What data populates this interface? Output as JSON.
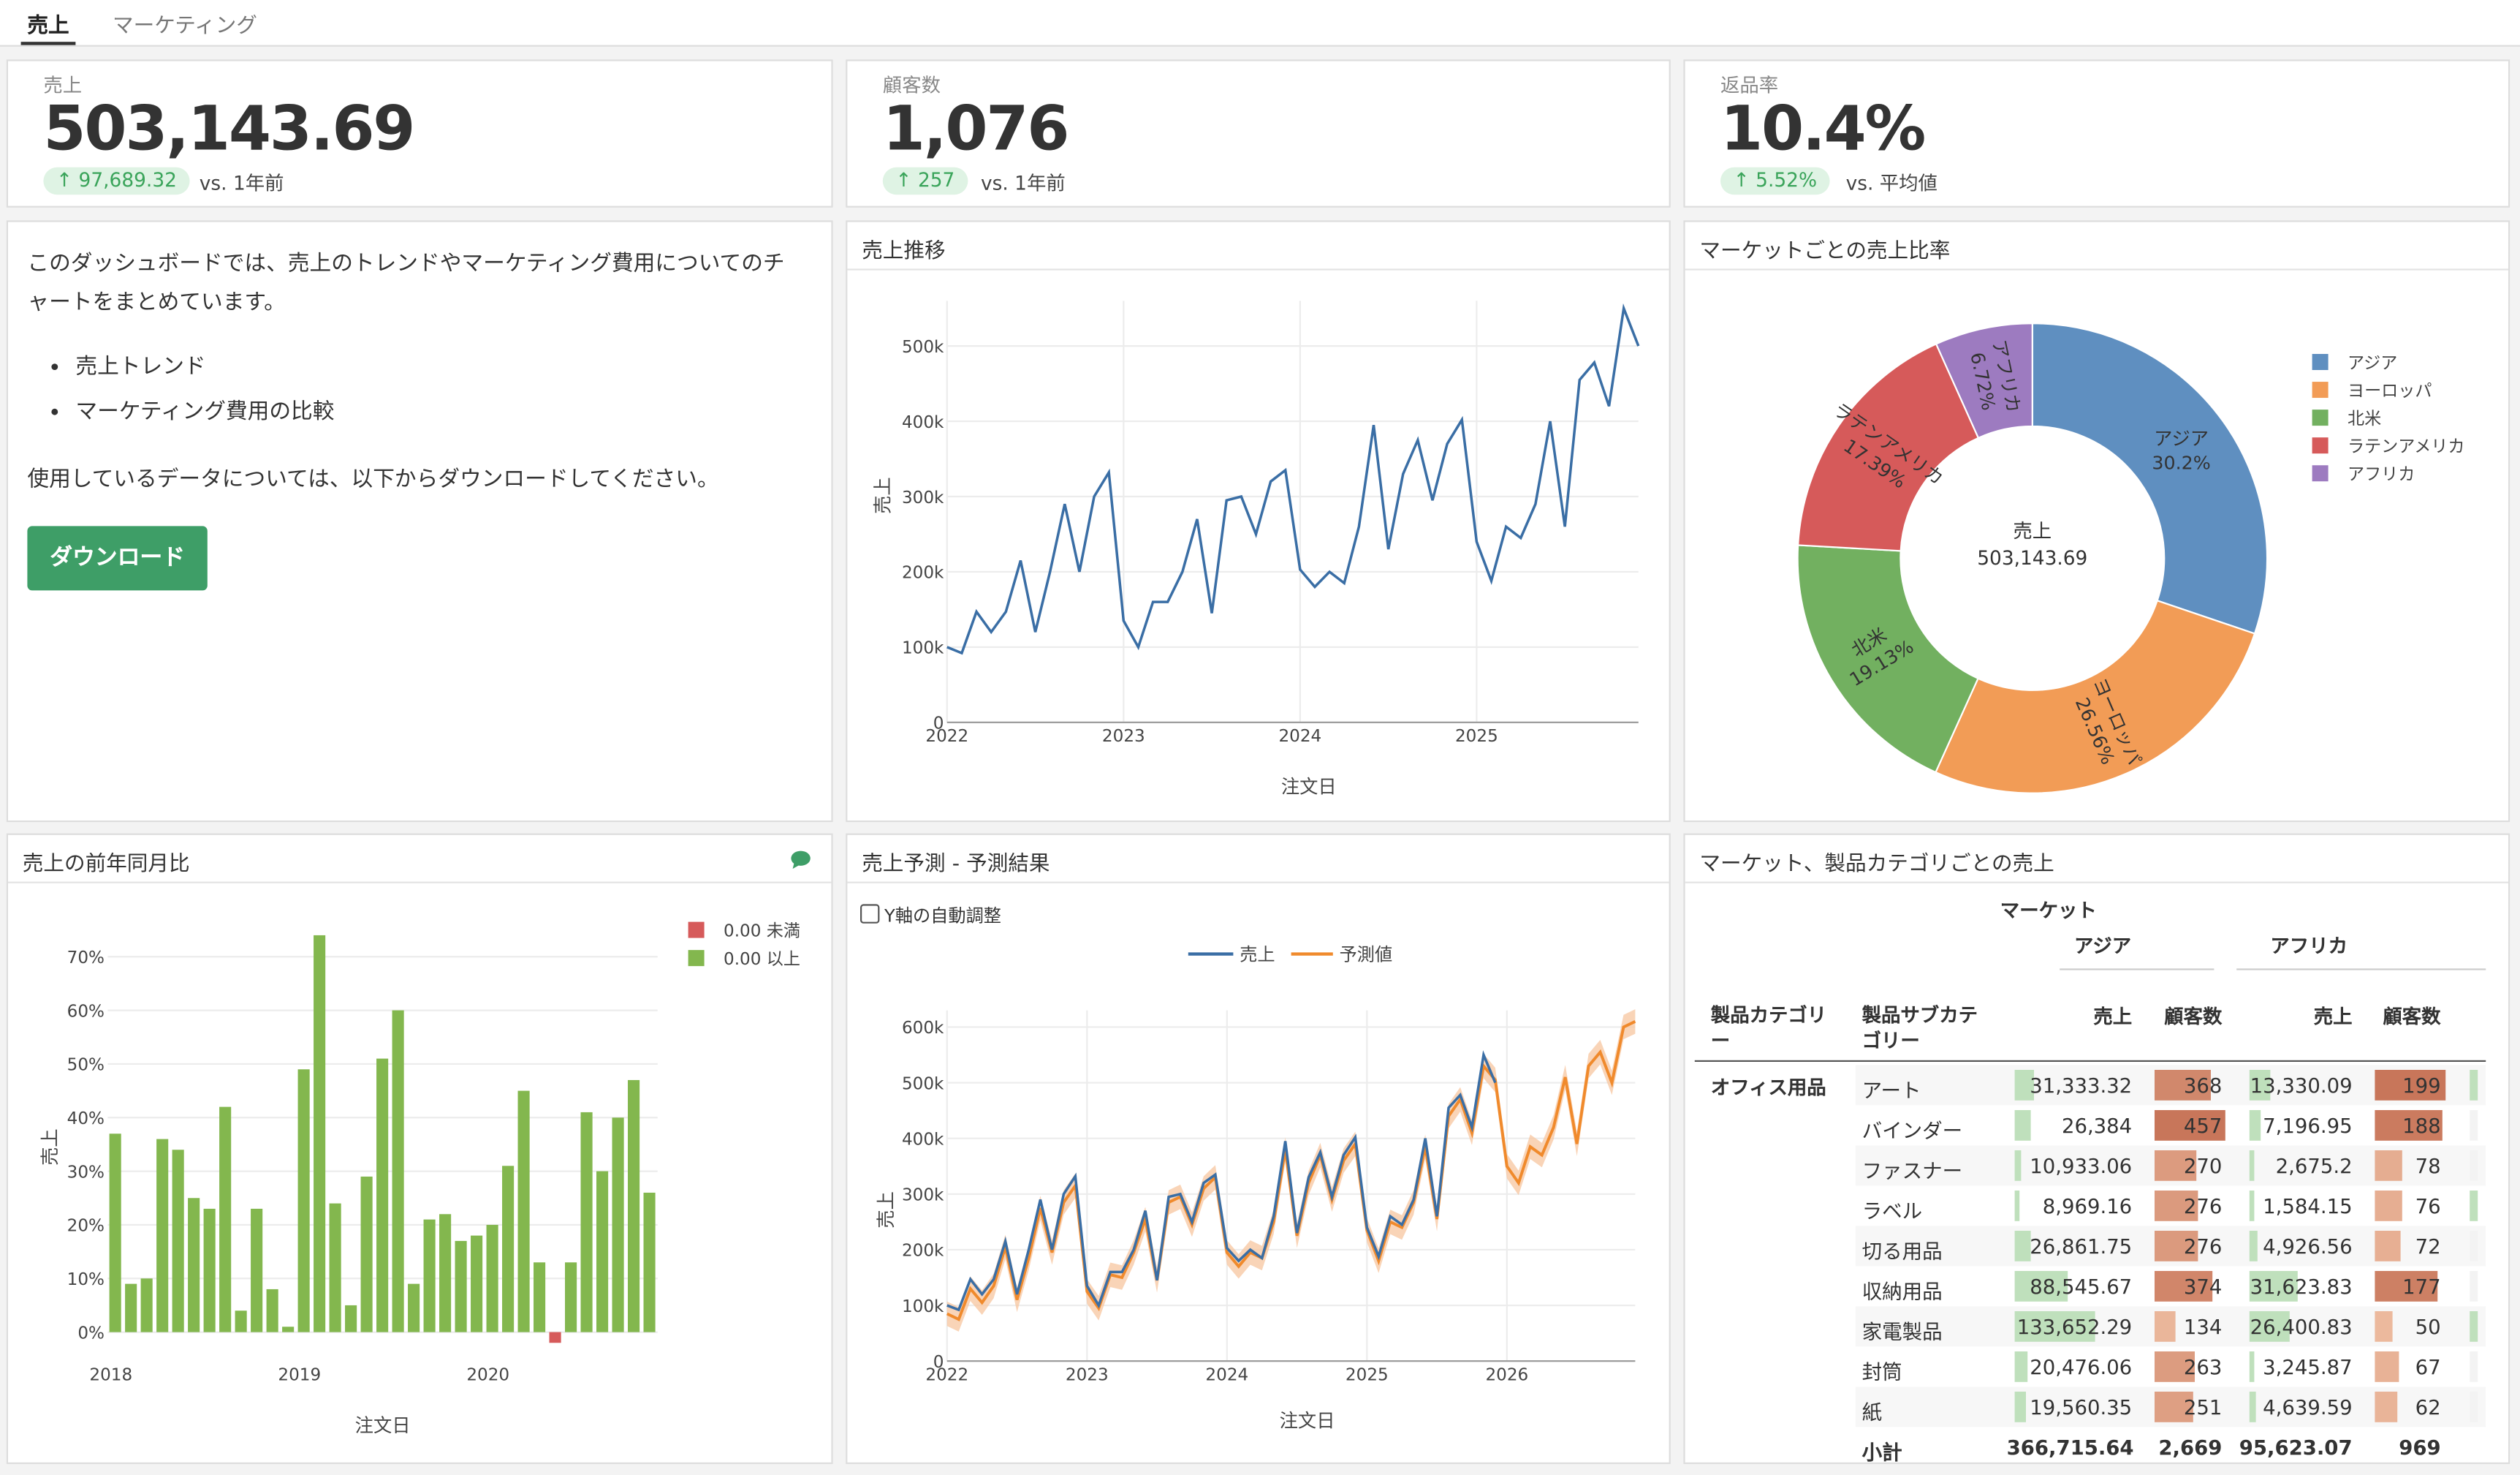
{
  "tabs": [
    {
      "label": "売上"
    },
    {
      "label": "マーケティング"
    }
  ],
  "kpis": [
    {
      "label": "売上",
      "value": "503,143.69",
      "delta": "97,689.32",
      "vs": "vs. 1年前"
    },
    {
      "label": "顧客数",
      "value": "1,076",
      "delta": "257",
      "vs": "vs. 1年前"
    },
    {
      "label": "返品率",
      "value": "10.4%",
      "delta": "5.52%",
      "vs": "vs. 平均値"
    }
  ],
  "intro": {
    "line1": "このダッシュボードでは、売上のトレンドやマーケティング費用についてのチ",
    "line2": "ャートをまとめています。",
    "bullets": [
      "売上トレンド",
      "マーケティング費用の比較"
    ],
    "note": "使用しているデータについては、以下からダウンロードしてください。",
    "button": "ダウンロード"
  },
  "panels": {
    "trend": "売上推移",
    "market_share": "マーケットごとの売上比率",
    "yoy": "売上の前年同月比",
    "forecast": "売上予測 - 予測結果",
    "table": "マーケット、製品カテゴリごとの売上"
  },
  "icons": {
    "comment": "comment-icon",
    "up_arrow": "arrow-up-icon"
  },
  "colors": {
    "accent": "#3e9e67",
    "line": "#3a6ea5",
    "forecast": "#f08a2c",
    "positive": "#83b74e",
    "negative": "#d65a5a"
  },
  "chart_data": [
    {
      "id": "trend",
      "type": "line",
      "xlabel": "注文日",
      "ylabel": "売上",
      "x_ticks": [
        "2022",
        "2023",
        "2024",
        "2025"
      ],
      "y_ticks": [
        "0",
        "100k",
        "200k",
        "300k",
        "400k",
        "500k"
      ],
      "ylim": [
        0,
        560000
      ],
      "x_start": "2022-01",
      "x_unit": "month",
      "series": [
        {
          "values": [
            100000,
            92000,
            147000,
            120000,
            147000,
            215000,
            120000,
            200000,
            290000,
            200000,
            300000,
            332000,
            135000,
            100000,
            160000,
            160000,
            200000,
            270000,
            145000,
            295000,
            300000,
            250000,
            320000,
            335000,
            203000,
            180000,
            200000,
            185000,
            260000,
            395000,
            230000,
            330000,
            375000,
            295000,
            370000,
            402000,
            240000,
            188000,
            260000,
            245000,
            290000,
            400000,
            260000,
            455000,
            478000,
            420000,
            550000,
            500000
          ]
        }
      ]
    },
    {
      "id": "market_share",
      "type": "pie",
      "center_label": "売上",
      "center_value": "503,143.69",
      "labels": [
        "アジア",
        "ヨーロッパ",
        "北米",
        "ラテンアメリカ",
        "アフリカ"
      ],
      "values": [
        30.2,
        26.56,
        19.13,
        17.39,
        6.72
      ],
      "slice_labels": [
        "30.2%",
        "26.56%",
        "19.13%",
        "17.39%",
        "6.72%"
      ],
      "colors": [
        "#5f8fc0",
        "#f29c56",
        "#72b060",
        "#d65a5a",
        "#9d7bc0"
      ],
      "legend": "top-right"
    },
    {
      "id": "yoy",
      "type": "bar",
      "xlabel": "注文日",
      "ylabel": "売上",
      "x_ticks": [
        "2018",
        "2019",
        "2020"
      ],
      "y_ticks": [
        "0%",
        "10%",
        "20%",
        "30%",
        "40%",
        "50%",
        "60%",
        "70%"
      ],
      "ylim": [
        -2,
        75
      ],
      "legend_labels": [
        "0.00 未満",
        "0.00 以上"
      ],
      "legend": "top-right",
      "values": [
        37,
        9,
        10,
        36,
        34,
        25,
        23,
        42,
        4,
        23,
        8,
        1,
        49,
        74,
        24,
        5,
        29,
        51,
        60,
        9,
        21,
        22,
        17,
        18,
        20,
        31,
        45,
        13,
        -2,
        13,
        41,
        30,
        40,
        47,
        26
      ]
    },
    {
      "id": "forecast",
      "type": "line",
      "xlabel": "注文日",
      "ylabel": "売上",
      "checkbox_label": "Y軸の自動調整",
      "x_ticks": [
        "2022",
        "2023",
        "2024",
        "2025",
        "2026"
      ],
      "y_ticks": [
        "0",
        "100k",
        "200k",
        "300k",
        "400k",
        "500k",
        "600k"
      ],
      "ylim": [
        0,
        630000
      ],
      "x_start": "2022-01",
      "x_unit": "month",
      "legend": "top",
      "series": [
        {
          "name": "売上",
          "values": [
            100000,
            92000,
            147000,
            120000,
            147000,
            215000,
            120000,
            200000,
            290000,
            200000,
            300000,
            332000,
            135000,
            100000,
            160000,
            160000,
            200000,
            270000,
            145000,
            295000,
            300000,
            250000,
            320000,
            335000,
            203000,
            180000,
            200000,
            185000,
            260000,
            395000,
            230000,
            330000,
            375000,
            295000,
            370000,
            402000,
            240000,
            188000,
            260000,
            245000,
            290000,
            400000,
            260000,
            455000,
            478000,
            420000,
            550000,
            500000
          ]
        },
        {
          "name": "予測値",
          "values": [
            85000,
            75000,
            130000,
            105000,
            135000,
            205000,
            110000,
            185000,
            275000,
            195000,
            285000,
            315000,
            125000,
            95000,
            155000,
            150000,
            195000,
            255000,
            145000,
            285000,
            295000,
            245000,
            310000,
            330000,
            195000,
            170000,
            195000,
            185000,
            250000,
            380000,
            225000,
            320000,
            370000,
            290000,
            360000,
            390000,
            235000,
            180000,
            250000,
            240000,
            285000,
            385000,
            255000,
            440000,
            470000,
            410000,
            530000,
            505000,
            350000,
            320000,
            385000,
            370000,
            420000,
            510000,
            390000,
            530000,
            555000,
            500000,
            600000,
            610000
          ]
        }
      ]
    },
    {
      "id": "market_table",
      "type": "table",
      "header_market": "マーケット",
      "markets": [
        "アジア",
        "アフリカ"
      ],
      "columns": [
        "製品カテゴリー",
        "製品サブカテゴリー",
        "売上",
        "顧客数",
        "売上",
        "顧客数"
      ],
      "category": "オフィス用品",
      "rows": [
        {
          "sub": "アート",
          "a_sales": "31,333.32",
          "a_cust": "368",
          "f_sales": "13,330.09",
          "f_cust": "199",
          "a_sales_v": 31333,
          "a_cust_v": 368,
          "f_sales_v": 13330,
          "f_cust_v": 199
        },
        {
          "sub": "バインダー",
          "a_sales": "26,384",
          "a_cust": "457",
          "f_sales": "7,196.95",
          "f_cust": "188",
          "a_sales_v": 26384,
          "a_cust_v": 457,
          "f_sales_v": 7197,
          "f_cust_v": 188
        },
        {
          "sub": "ファスナー",
          "a_sales": "10,933.06",
          "a_cust": "270",
          "f_sales": "2,675.2",
          "f_cust": "78",
          "a_sales_v": 10933,
          "a_cust_v": 270,
          "f_sales_v": 2675,
          "f_cust_v": 78
        },
        {
          "sub": "ラベル",
          "a_sales": "8,969.16",
          "a_cust": "276",
          "f_sales": "1,584.15",
          "f_cust": "76",
          "a_sales_v": 8969,
          "a_cust_v": 276,
          "f_sales_v": 1584,
          "f_cust_v": 76
        },
        {
          "sub": "切る用品",
          "a_sales": "26,861.75",
          "a_cust": "276",
          "f_sales": "4,926.56",
          "f_cust": "72",
          "a_sales_v": 26862,
          "a_cust_v": 276,
          "f_sales_v": 4927,
          "f_cust_v": 72
        },
        {
          "sub": "収納用品",
          "a_sales": "88,545.67",
          "a_cust": "374",
          "f_sales": "31,623.83",
          "f_cust": "177",
          "a_sales_v": 88546,
          "a_cust_v": 374,
          "f_sales_v": 31624,
          "f_cust_v": 177
        },
        {
          "sub": "家電製品",
          "a_sales": "133,652.29",
          "a_cust": "134",
          "f_sales": "26,400.83",
          "f_cust": "50",
          "a_sales_v": 133652,
          "a_cust_v": 134,
          "f_sales_v": 26401,
          "f_cust_v": 50
        },
        {
          "sub": "封筒",
          "a_sales": "20,476.06",
          "a_cust": "263",
          "f_sales": "3,245.87",
          "f_cust": "67",
          "a_sales_v": 20476,
          "a_cust_v": 263,
          "f_sales_v": 3246,
          "f_cust_v": 67
        },
        {
          "sub": "紙",
          "a_sales": "19,560.35",
          "a_cust": "251",
          "f_sales": "4,639.59",
          "f_cust": "62",
          "a_sales_v": 19560,
          "a_cust_v": 251,
          "f_sales_v": 4640,
          "f_cust_v": 62
        }
      ],
      "subtotal": {
        "label": "小計",
        "a_sales": "366,715.64",
        "a_cust": "2,669",
        "f_sales": "95,623.07",
        "f_cust": "969"
      }
    }
  ]
}
